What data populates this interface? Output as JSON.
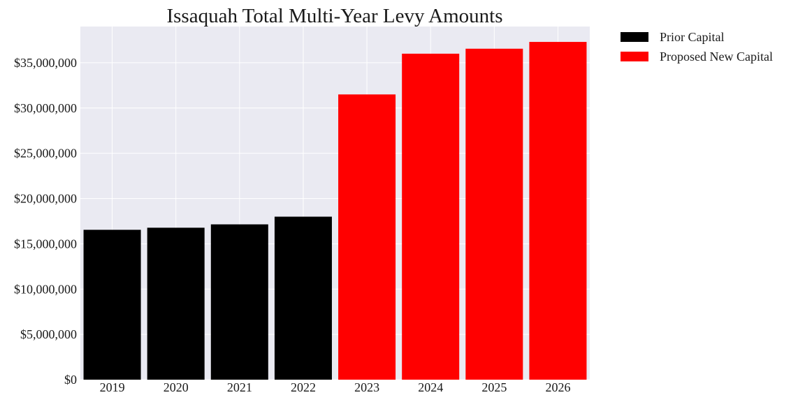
{
  "chart_data": {
    "type": "bar",
    "title": "Issaquah Total Multi-Year Levy Amounts",
    "xlabel": "",
    "ylabel": "",
    "categories": [
      "2019",
      "2020",
      "2021",
      "2022",
      "2023",
      "2024",
      "2025",
      "2026"
    ],
    "series": [
      {
        "name": "Prior Capital",
        "color": "#000000",
        "values": [
          16550000,
          16780000,
          17150000,
          18000000,
          null,
          null,
          null,
          null
        ]
      },
      {
        "name": "Proposed New Capital",
        "color": "#ff0000",
        "values": [
          null,
          null,
          null,
          null,
          31500000,
          36000000,
          36550000,
          37300000
        ]
      }
    ],
    "ylim": [
      0,
      39000000
    ],
    "yticks": [
      0,
      5000000,
      10000000,
      15000000,
      20000000,
      25000000,
      30000000,
      35000000
    ],
    "ytick_labels": [
      "$0",
      "$5,000,000",
      "$10,000,000",
      "$15,000,000",
      "$20,000,000",
      "$25,000,000",
      "$30,000,000",
      "$35,000,000"
    ],
    "grid": true,
    "legend_position": "outside-top-right",
    "background_color": "#eaeaf2",
    "grid_color": "#ffffff"
  }
}
